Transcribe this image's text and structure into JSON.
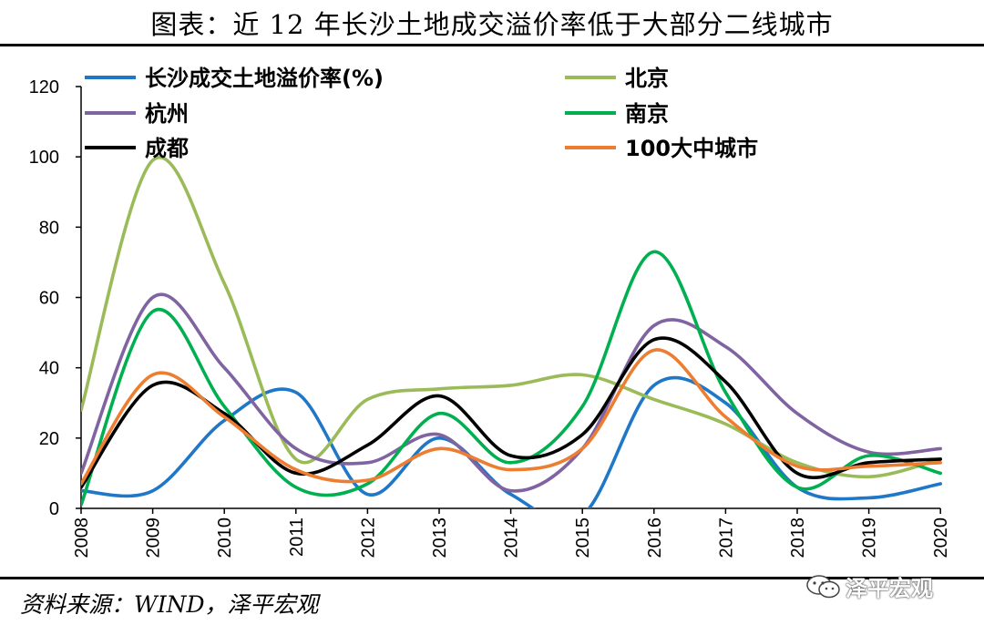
{
  "header": {
    "title": "图表：近 12 年长沙土地成交溢价率低于大部分二线城市"
  },
  "footer": {
    "source": "资料来源：WIND，泽平宏观",
    "watermark": "泽平宏观"
  },
  "chart_data": {
    "type": "line",
    "x": [
      "2008",
      "2009",
      "2010",
      "2011",
      "2012",
      "2013",
      "2014",
      "2015",
      "2016",
      "2017",
      "2018",
      "2019",
      "2020"
    ],
    "ylim": [
      0,
      120
    ],
    "yticks": [
      0,
      20,
      40,
      60,
      80,
      100,
      120
    ],
    "legend_position": "top",
    "series": [
      {
        "name": "长沙成交土地溢价率(%)",
        "color": "#1f77c8",
        "values": [
          5,
          5,
          25,
          33,
          4,
          20,
          4,
          -2,
          35,
          30,
          6,
          3,
          7
        ]
      },
      {
        "name": "北京",
        "color": "#9bbb59",
        "values": [
          28,
          99,
          64,
          14,
          31,
          34,
          35,
          38,
          31,
          24,
          13,
          9,
          14
        ]
      },
      {
        "name": "杭州",
        "color": "#8064a2",
        "values": [
          10,
          60,
          40,
          17,
          13,
          21,
          5,
          17,
          52,
          46,
          27,
          16,
          17
        ]
      },
      {
        "name": "南京",
        "color": "#00b050",
        "values": [
          1,
          56,
          29,
          6,
          7,
          27,
          13,
          29,
          73,
          33,
          6,
          15,
          10
        ]
      },
      {
        "name": "成都",
        "color": "#000000",
        "values": [
          6,
          35,
          27,
          10,
          18,
          32,
          15,
          21,
          48,
          36,
          10,
          13,
          14
        ]
      },
      {
        "name": "100大中城市",
        "color": "#ed7d31",
        "values": [
          7,
          38,
          26,
          11,
          8,
          17,
          11,
          17,
          45,
          26,
          12,
          12,
          13
        ]
      }
    ]
  }
}
